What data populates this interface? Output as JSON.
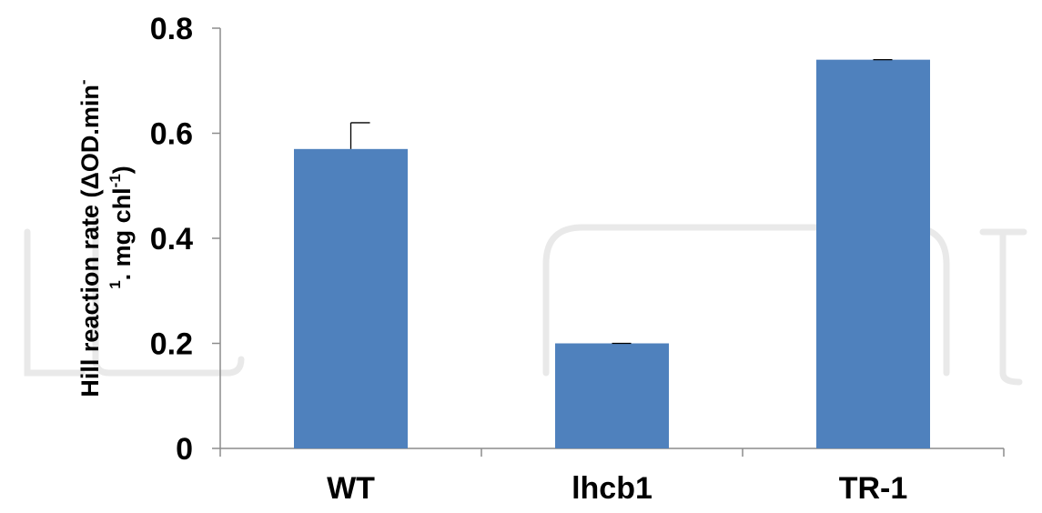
{
  "chart_data": {
    "type": "bar",
    "categories": [
      "WT",
      "lhcb1",
      "TR-1"
    ],
    "values": [
      0.57,
      0.2,
      0.74
    ],
    "error": [
      0.05,
      0.0,
      0.0
    ],
    "ylim": [
      0,
      0.8
    ],
    "yticks": [
      "0",
      "0.2",
      "0.4",
      "0.6",
      "0.8"
    ],
    "ylabel": {
      "line1": "Hill reaction rate (ΔOD.min",
      "line1_sup": "-",
      "line2_sup": "1",
      "line2": ". mg chl",
      "line2_sup2": "-1",
      "line2_end": ")"
    },
    "grid": false,
    "legend": "none",
    "bar_color": "#4f81bd",
    "watermark_color": "#e9e9e9"
  }
}
